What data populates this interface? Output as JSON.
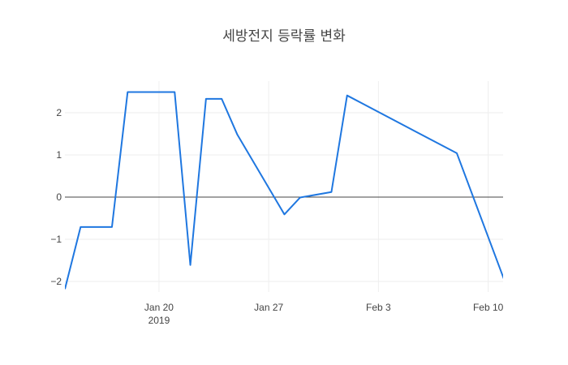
{
  "chart_data": {
    "type": "line",
    "title": "세방전지 등락률 변화",
    "xlabel": "",
    "ylabel": "",
    "x_range": [
      "2019-01-14",
      "2019-02-10"
    ],
    "ylim": [
      -2.25,
      2.75
    ],
    "grid": true,
    "zero_line": true,
    "legend": "none",
    "x_ticks": [
      {
        "date": "2019-01-20",
        "label": "Jan 20",
        "sublabel": "2019"
      },
      {
        "date": "2019-01-27",
        "label": "Jan 27",
        "sublabel": ""
      },
      {
        "date": "2019-02-03",
        "label": "Feb 3",
        "sublabel": ""
      },
      {
        "date": "2019-02-10",
        "label": "Feb 10",
        "sublabel": ""
      }
    ],
    "y_ticks": [
      {
        "value": -2,
        "label": "−2"
      },
      {
        "value": -1,
        "label": "−1"
      },
      {
        "value": 0,
        "label": "0"
      },
      {
        "value": 1,
        "label": "1"
      },
      {
        "value": 2,
        "label": "2"
      }
    ],
    "series": [
      {
        "color": "#1f77e0",
        "points": [
          {
            "x": "2019-01-14",
            "y": -2.18
          },
          {
            "x": "2019-01-15",
            "y": -0.71
          },
          {
            "x": "2019-01-17",
            "y": -0.71
          },
          {
            "x": "2019-01-18",
            "y": 2.49
          },
          {
            "x": "2019-01-21",
            "y": 2.49
          },
          {
            "x": "2019-01-22",
            "y": -1.61
          },
          {
            "x": "2019-01-23",
            "y": 2.33
          },
          {
            "x": "2019-01-24",
            "y": 2.33
          },
          {
            "x": "2019-01-25",
            "y": 1.48
          },
          {
            "x": "2019-01-28",
            "y": -0.41
          },
          {
            "x": "2019-01-29",
            "y": -0.01
          },
          {
            "x": "2019-01-31",
            "y": 0.12
          },
          {
            "x": "2019-02-01",
            "y": 2.41
          },
          {
            "x": "2019-02-08",
            "y": 1.04
          },
          {
            "x": "2019-02-11",
            "y": -1.94
          }
        ]
      }
    ]
  }
}
